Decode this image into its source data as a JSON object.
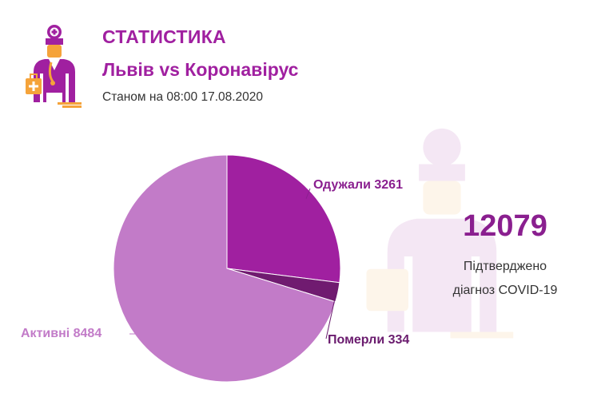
{
  "header": {
    "title": "СТАТИСТИКА",
    "subtitle": "Львів vs Коронавірус",
    "date_text": "Станом на 08:00 17.08.2020"
  },
  "summary": {
    "total": "12079",
    "caption_line1": "Підтверджено",
    "caption_line2": "діагноз COVID-19"
  },
  "colors": {
    "recovered": "#a020a0",
    "died": "#701b70",
    "active": "#c27bc8",
    "title": "#a020a0",
    "logo_orange": "#f5a33a"
  },
  "chart_data": {
    "type": "pie",
    "title": "",
    "slices": [
      {
        "label": "Одужали 3261",
        "name": "Одужали",
        "value": 3261,
        "color": "#a020a0",
        "label_color": "#8a1f8f"
      },
      {
        "label": "Померли 334",
        "name": "Померли",
        "value": 334,
        "color": "#701b70",
        "label_color": "#6a1b6e"
      },
      {
        "label": "Активні 8484",
        "name": "Активні",
        "value": 8484,
        "color": "#c27bc8",
        "label_color": "#c27bc8"
      }
    ],
    "start_angle": "12 o'clock",
    "direction": "clockwise",
    "legend": "none"
  }
}
